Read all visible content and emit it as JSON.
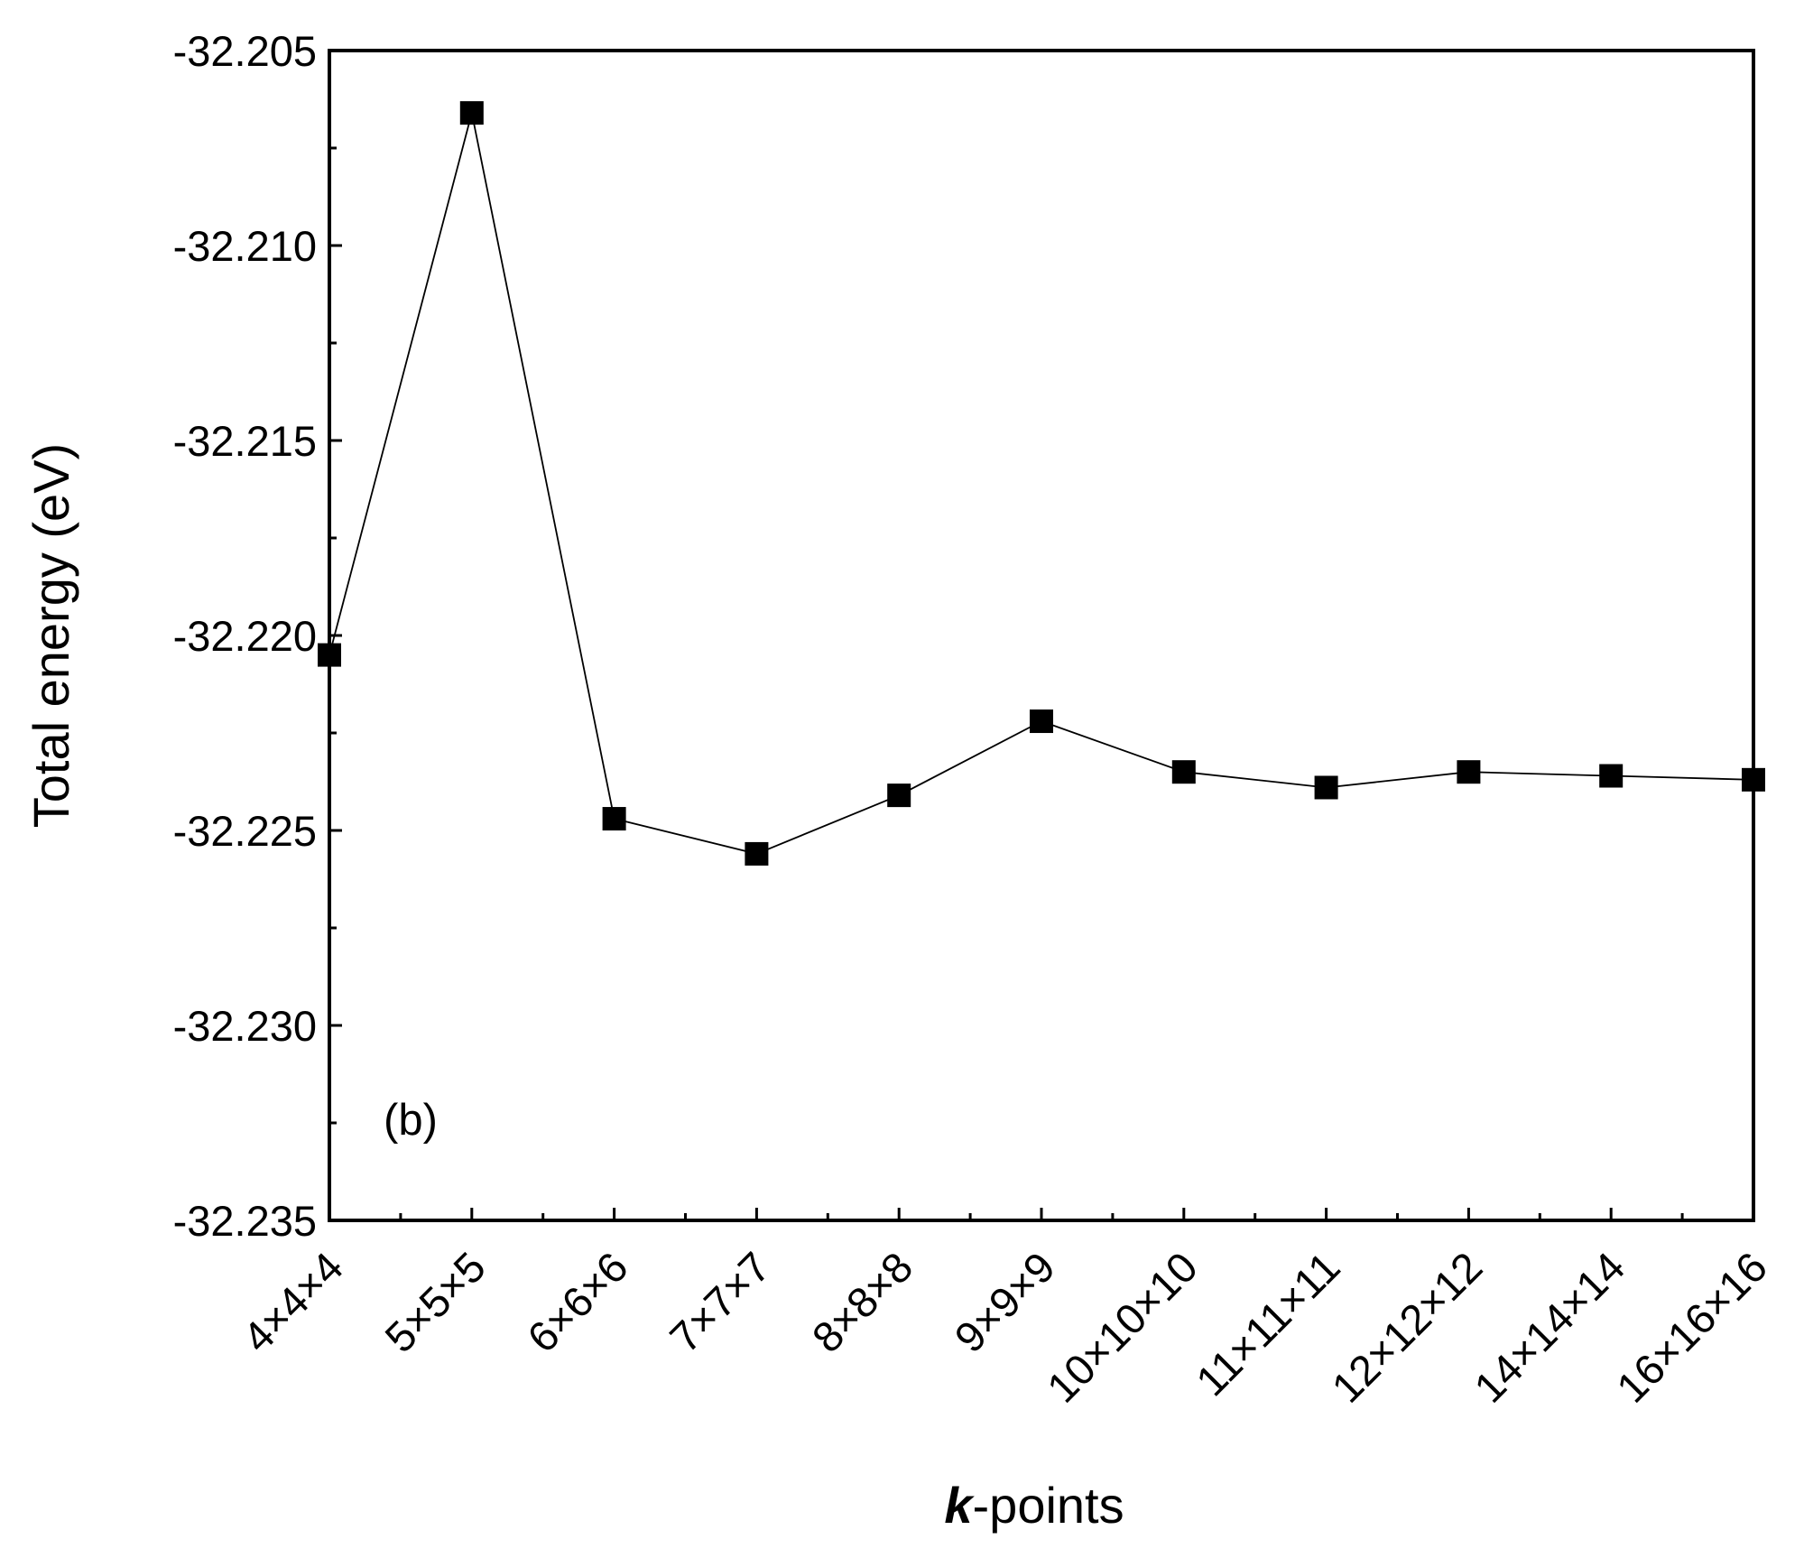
{
  "chart_data": {
    "type": "line",
    "title": "",
    "xlabel": {
      "italic_part": "k",
      "rest": "-points"
    },
    "ylabel": "Total energy (eV)",
    "annotation": "(b)",
    "categories": [
      "4×4×4",
      "5×5×5",
      "6×6×6",
      "7×7×7",
      "8×8×8",
      "9×9×9",
      "10×10×10",
      "11×11×11",
      "12×12×12",
      "14×14×14",
      "16×16×16"
    ],
    "series": [
      {
        "values": [
          -32.2205,
          -32.2066,
          -32.2247,
          -32.2256,
          -32.2241,
          -32.2222,
          -32.2235,
          -32.2239,
          -32.2235,
          -32.2236,
          -32.2237
        ],
        "color": "#000000",
        "marker": "square"
      }
    ],
    "ylim": [
      -32.235,
      -32.205
    ],
    "yticks": [
      "-32.205",
      "-32.210",
      "-32.215",
      "-32.220",
      "-32.225",
      "-32.230",
      "-32.235"
    ],
    "ytick_values": [
      -32.205,
      -32.21,
      -32.215,
      -32.22,
      -32.225,
      -32.23,
      -32.235
    ],
    "grid": false,
    "legend": "none"
  }
}
